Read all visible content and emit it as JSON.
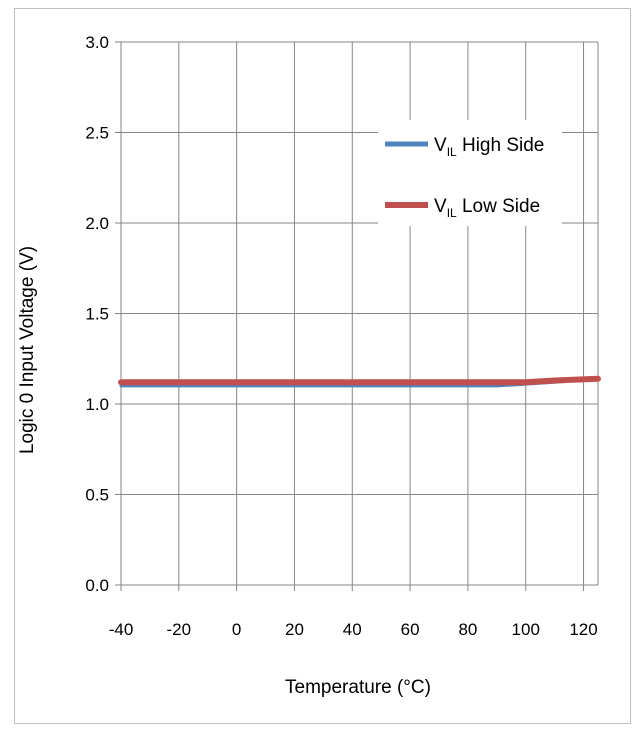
{
  "chart_data": {
    "type": "line",
    "xlabel": "Temperature (°C)",
    "ylabel": "Logic 0 Input Voltage (V)",
    "xlim": [
      -40,
      125
    ],
    "ylim": [
      0.0,
      3.0
    ],
    "x_ticks": [
      "-40",
      "-20",
      "0",
      "20",
      "40",
      "60",
      "80",
      "100",
      "120"
    ],
    "y_ticks": [
      "0.0",
      "0.5",
      "1.0",
      "1.5",
      "2.0",
      "2.5",
      "3.0"
    ],
    "grid": true,
    "legend_position": "top-right",
    "series": [
      {
        "name_main": "V",
        "name_sub": "IL",
        "name_rest": " High Side",
        "color": "#4f81bd",
        "x": [
          -40,
          -20,
          0,
          20,
          40,
          60,
          80,
          90,
          100,
          110,
          125
        ],
        "y": [
          1.1,
          1.1,
          1.1,
          1.1,
          1.1,
          1.1,
          1.1,
          1.1,
          1.11,
          1.12,
          1.14
        ]
      },
      {
        "name_main": "V",
        "name_sub": "IL",
        "name_rest": " Low Side",
        "color": "#c0504d",
        "x": [
          -40,
          -20,
          0,
          20,
          40,
          60,
          80,
          90,
          100,
          110,
          125
        ],
        "y": [
          1.12,
          1.12,
          1.12,
          1.12,
          1.12,
          1.12,
          1.12,
          1.12,
          1.12,
          1.13,
          1.14
        ]
      }
    ]
  }
}
